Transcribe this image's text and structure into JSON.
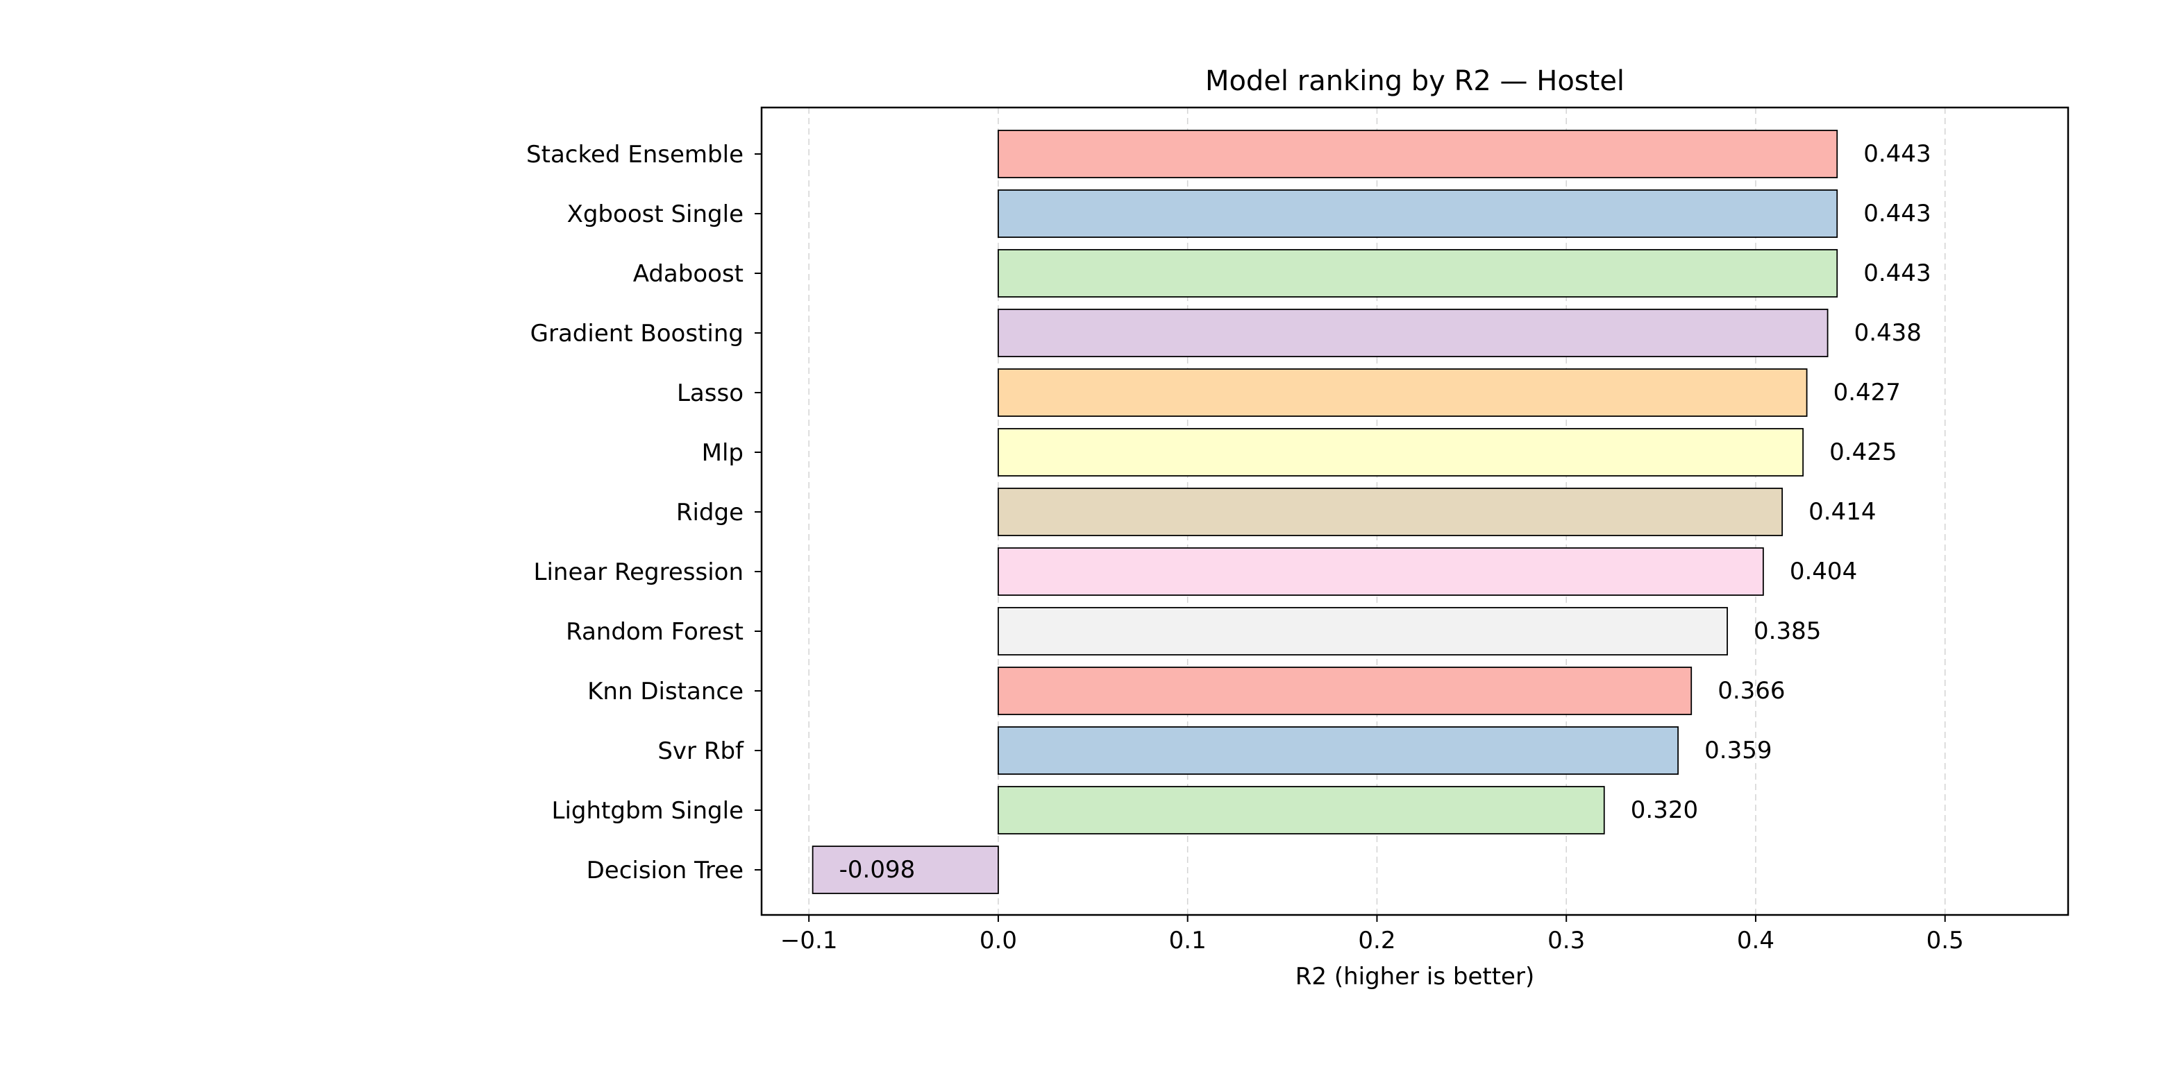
{
  "chart_data": {
    "type": "bar",
    "orientation": "horizontal",
    "title": "Model ranking by R2 — Hostel",
    "xlabel": "R2 (higher is better)",
    "ylabel": "",
    "xlim": [
      -0.125,
      0.565
    ],
    "xticks": [
      -0.1,
      0.0,
      0.1,
      0.2,
      0.3,
      0.4,
      0.5
    ],
    "xtick_labels": [
      "−0.1",
      "0.0",
      "0.1",
      "0.2",
      "0.3",
      "0.4",
      "0.5"
    ],
    "grid": "x-axis dashed",
    "categories": [
      "Stacked Ensemble",
      "Xgboost Single",
      "Adaboost",
      "Gradient Boosting",
      "Lasso",
      "Mlp",
      "Ridge",
      "Linear Regression",
      "Random Forest",
      "Knn Distance",
      "Svr Rbf",
      "Lightgbm Single",
      "Decision Tree"
    ],
    "values": [
      0.443,
      0.443,
      0.443,
      0.438,
      0.427,
      0.425,
      0.414,
      0.404,
      0.385,
      0.366,
      0.359,
      0.32,
      -0.098
    ],
    "value_labels": [
      "0.443",
      "0.443",
      "0.443",
      "0.438",
      "0.427",
      "0.425",
      "0.414",
      "0.404",
      "0.385",
      "0.366",
      "0.359",
      "0.320",
      "-0.098"
    ],
    "colors": [
      "#fbb4ae",
      "#b3cde3",
      "#ccebc5",
      "#decbe4",
      "#fed9a6",
      "#ffffcc",
      "#e5d8bd",
      "#fddaec",
      "#f2f2f2",
      "#fbb4ae",
      "#b3cde3",
      "#ccebc5",
      "#decbe4"
    ]
  }
}
